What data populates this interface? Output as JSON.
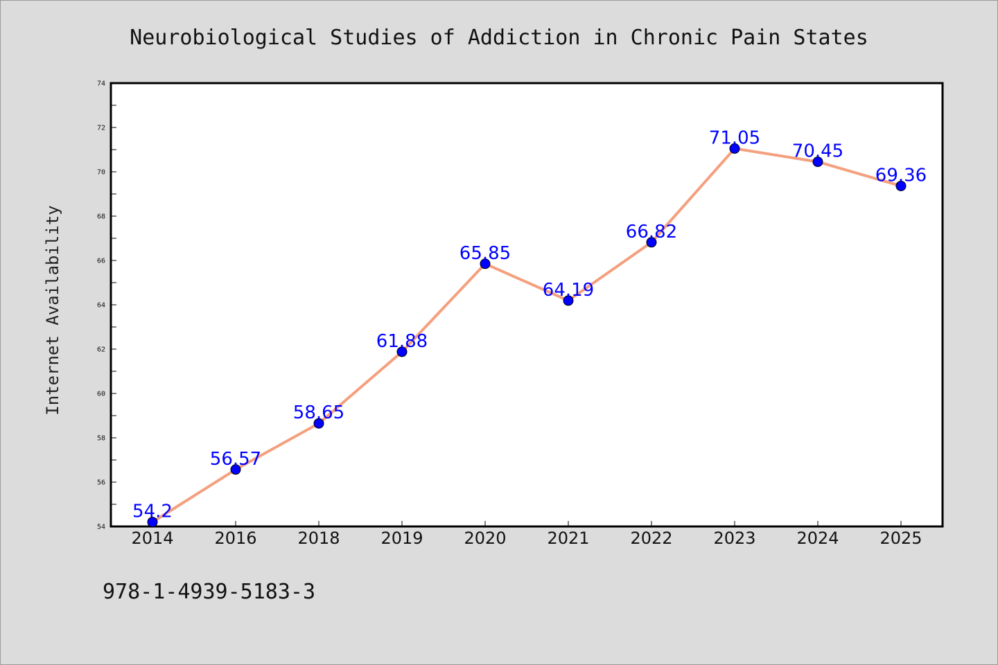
{
  "chart_data": {
    "type": "line",
    "title": "Neurobiological Studies of Addiction in Chronic Pain States",
    "xlabel": "",
    "ylabel": "Internet Availability",
    "categories": [
      "2014",
      "2016",
      "2018",
      "2019",
      "2020",
      "2021",
      "2022",
      "2023",
      "2024",
      "2025"
    ],
    "series": [
      {
        "values": [
          54.2,
          56.57,
          58.65,
          61.88,
          65.85,
          64.19,
          66.82,
          71.05,
          70.45,
          69.36
        ],
        "labels": [
          "54.2",
          "56.57",
          "58.65",
          "61.88",
          "65.85",
          "64.19",
          "66.82",
          "71.05",
          "70.45",
          "69.36"
        ]
      }
    ],
    "ylim": [
      54,
      74
    ],
    "yticks": [
      54,
      56,
      58,
      60,
      62,
      64,
      66,
      68,
      70,
      72,
      74
    ],
    "ytick_labels": [
      "54",
      "56",
      "58",
      "60",
      "62",
      "64",
      "66",
      "68",
      "70",
      "72",
      "74"
    ],
    "grid": false,
    "legend": "none",
    "colors": {
      "line": "#f4a07e",
      "marker": "#0000ff",
      "data_label": "#0000ff",
      "plot_background": "#ffffff",
      "figure_background": "#dcdcdc"
    }
  },
  "footer": {
    "isbn": "978-1-4939-5183-3"
  }
}
